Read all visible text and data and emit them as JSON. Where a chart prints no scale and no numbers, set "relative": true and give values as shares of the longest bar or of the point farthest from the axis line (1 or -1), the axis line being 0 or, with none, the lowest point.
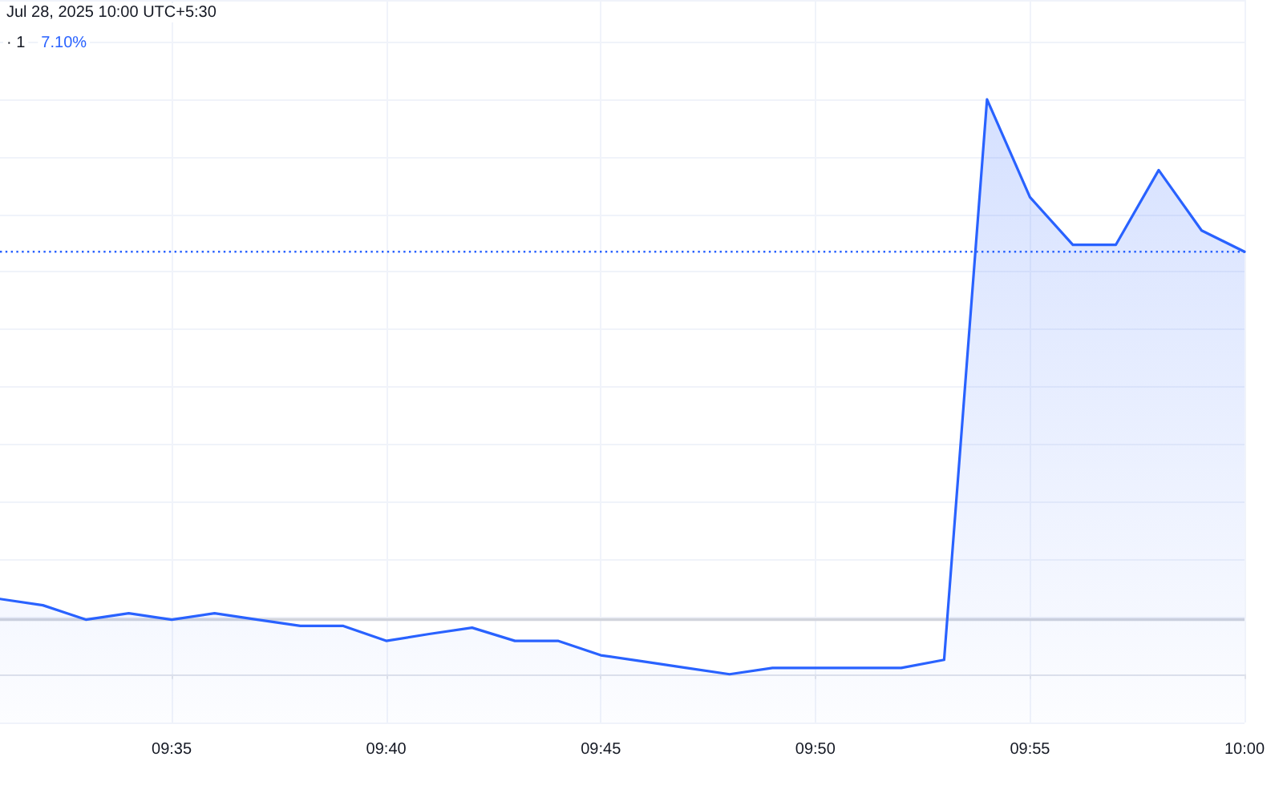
{
  "chart_data": {
    "type": "area",
    "title": "Jul 28, 2025 10:00 UTC+5:30",
    "subtitle": "· 1",
    "annotations": [
      "7.10%"
    ],
    "relative": true,
    "color": "#2962ff",
    "x": [
      "2025-07-28T09:31",
      "2025-07-28T09:32",
      "2025-07-28T09:33",
      "2025-07-28T09:34",
      "2025-07-28T09:35",
      "2025-07-28T09:36",
      "2025-07-28T09:37",
      "2025-07-28T09:38",
      "2025-07-28T09:39",
      "2025-07-28T09:40",
      "2025-07-28T09:41",
      "2025-07-28T09:42",
      "2025-07-28T09:43",
      "2025-07-28T09:44",
      "2025-07-28T09:45",
      "2025-07-28T09:46",
      "2025-07-28T09:47",
      "2025-07-28T09:48",
      "2025-07-28T09:49",
      "2025-07-28T09:50",
      "2025-07-28T09:51",
      "2025-07-28T09:52",
      "2025-07-28T09:53",
      "2025-07-28T09:54",
      "2025-07-28T09:55",
      "2025-07-28T09:56",
      "2025-07-28T09:57",
      "2025-07-28T09:58",
      "2025-07-28T09:59",
      "2025-07-28T10:00"
    ],
    "values": [
      0.131,
      0.12,
      0.095,
      0.106,
      0.095,
      0.106,
      0.095,
      0.084,
      0.084,
      0.058,
      0.07,
      0.081,
      0.058,
      0.058,
      0.033,
      0.022,
      0.011,
      0,
      0.011,
      0.011,
      0.011,
      0.011,
      0.025,
      1,
      0.83,
      0.747,
      0.747,
      0.877,
      0.772,
      0.735
    ],
    "xlim": [
      "2025-07-28T09:31",
      "2025-07-28T10:00"
    ],
    "xticks": [
      {
        "value": "2025-07-28T09:35",
        "label": "09:35"
      },
      {
        "value": "2025-07-28T09:40",
        "label": "09:40"
      },
      {
        "value": "2025-07-28T09:45",
        "label": "09:45"
      },
      {
        "value": "2025-07-28T09:50",
        "label": "09:50"
      },
      {
        "value": "2025-07-28T09:55",
        "label": "09:55"
      },
      {
        "value": "2025-07-28T10:00",
        "label": "10:00"
      }
    ],
    "ref_lines": [
      {
        "axis": "y",
        "value": 0.735,
        "color": "#2962ff",
        "line_style": "dotted"
      },
      {
        "axis": "y",
        "value": 0.095,
        "color": "#d1d4dc",
        "line_style": "solid"
      }
    ],
    "grid": true
  }
}
